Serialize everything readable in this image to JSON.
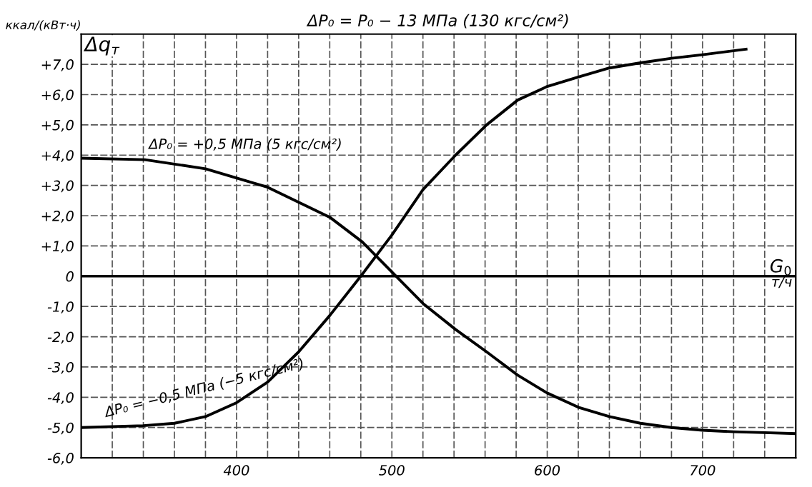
{
  "chart_data": {
    "type": "line",
    "title": "ΔP₀ = P₀ − 13 МПа (130 кгс/см²)",
    "ylabel": "Δq$_{т}$",
    "xlabel": "G$_{0}$",
    "annotations": [
      "ккал/(кВт·ч)",
      "т/ч"
    ],
    "series": [
      {
        "name": "ΔP₀ = +0,5 МПа (5 кгс/см²)",
        "color": "#000000",
        "x": [
          300,
          341,
          380,
          420,
          460,
          481,
          500,
          520,
          541,
          561,
          581,
          600,
          620,
          640,
          660,
          680,
          700,
          720,
          740,
          760
        ],
        "values": [
          3.9,
          3.85,
          3.55,
          2.94,
          1.95,
          1.13,
          0.14,
          -0.9,
          -1.76,
          -2.5,
          -3.27,
          -3.86,
          -4.33,
          -4.64,
          -4.86,
          -5.0,
          -5.09,
          -5.14,
          -5.17,
          -5.2
        ]
      },
      {
        "name": "ΔP₀ = −0,5 МПа (−5 кгс/см²)",
        "color": "#000000",
        "x": [
          300,
          340,
          360,
          380,
          400,
          420,
          440,
          460,
          480,
          500,
          520,
          541,
          561,
          581,
          600,
          620,
          640,
          660,
          680,
          700,
          728
        ],
        "values": [
          -5.0,
          -4.94,
          -4.86,
          -4.64,
          -4.18,
          -3.5,
          -2.5,
          -1.3,
          0.0,
          1.36,
          2.86,
          4.0,
          5.0,
          5.82,
          6.27,
          6.58,
          6.88,
          7.05,
          7.2,
          7.32,
          7.5
        ]
      }
    ],
    "xlim": [
      300,
      760
    ],
    "xticks": [
      {
        "value": 320,
        "label": null
      },
      {
        "value": 340,
        "label": null
      },
      {
        "value": 360,
        "label": null
      },
      {
        "value": 380,
        "label": null
      },
      400,
      {
        "value": 420,
        "label": null
      },
      {
        "value": 440,
        "label": null
      },
      {
        "value": 460,
        "label": null
      },
      {
        "value": 480,
        "label": null
      },
      500,
      {
        "value": 520,
        "label": null
      },
      {
        "value": 540,
        "label": null
      },
      {
        "value": 560,
        "label": null
      },
      {
        "value": 580,
        "label": null
      },
      600,
      {
        "value": 620,
        "label": null
      },
      {
        "value": 640,
        "label": null
      },
      {
        "value": 660,
        "label": null
      },
      {
        "value": 680,
        "label": null
      },
      700,
      {
        "value": 720,
        "label": null
      },
      {
        "value": 740,
        "label": null
      }
    ],
    "ylim": [
      -6,
      8
    ],
    "yticks": [
      {
        "value": -6,
        "label": "-6,0"
      },
      {
        "value": -5,
        "label": "-5,0"
      },
      {
        "value": -4,
        "label": "-4,0"
      },
      {
        "value": -3,
        "label": "-3,0"
      },
      {
        "value": -2,
        "label": "-2,0"
      },
      {
        "value": -1,
        "label": "-1,0"
      },
      0,
      {
        "value": 1,
        "label": "+1,0"
      },
      {
        "value": 2,
        "label": "+2,0"
      },
      {
        "value": 3,
        "label": "+3,0"
      },
      {
        "value": 4,
        "label": "+4,0"
      },
      {
        "value": 5,
        "label": "+5,0"
      },
      {
        "value": 6,
        "label": "+6,0"
      },
      {
        "value": 7,
        "label": "+7,0"
      }
    ],
    "ref_lines": [
      {
        "axis": "y",
        "value": 0,
        "label": null,
        "color": "#000000"
      }
    ],
    "grid": true,
    "legend": false,
    "line_style": "solid",
    "marker": "none"
  }
}
